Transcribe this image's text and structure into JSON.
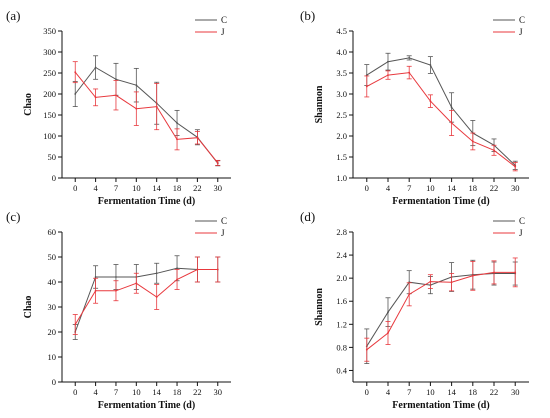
{
  "colors": {
    "C": "#555555",
    "J": "#e8383d",
    "axis": "#111111"
  },
  "chart_data": [
    {
      "panel": "(a)",
      "type": "line",
      "categories": [
        "0",
        "4",
        "7",
        "10",
        "14",
        "18",
        "22",
        "30"
      ],
      "xlabel": "Fermentation Time (d)",
      "ylabel": "Chao",
      "ylim": [
        0,
        350
      ],
      "yticks": [
        "0",
        "50",
        "100",
        "150",
        "200",
        "250",
        "300",
        "350"
      ],
      "legend_position": "top-right",
      "series": [
        {
          "name": "C",
          "values": [
            200,
            263,
            235,
            221,
            178,
            131,
            97,
            35
          ],
          "errors": [
            30,
            28,
            38,
            40,
            50,
            30,
            18,
            6
          ]
        },
        {
          "name": "J",
          "values": [
            252,
            192,
            197,
            165,
            170,
            92,
            96,
            36
          ],
          "errors": [
            25,
            20,
            35,
            40,
            55,
            25,
            15,
            6
          ]
        }
      ]
    },
    {
      "panel": "(b)",
      "type": "line",
      "categories": [
        "0",
        "4",
        "7",
        "10",
        "14",
        "18",
        "22",
        "30"
      ],
      "xlabel": "Fermentation Time (d)",
      "ylabel": "Shannon",
      "ylim": [
        1.0,
        4.5
      ],
      "yticks": [
        "1.0",
        "1.5",
        "2.0",
        "2.5",
        "3.0",
        "3.5",
        "4.0",
        "4.5"
      ],
      "legend_position": "top-right",
      "series": [
        {
          "name": "C",
          "values": [
            3.45,
            3.77,
            3.86,
            3.69,
            2.68,
            2.07,
            1.78,
            1.3
          ],
          "errors": [
            0.25,
            0.2,
            0.05,
            0.2,
            0.35,
            0.3,
            0.15,
            0.1
          ]
        },
        {
          "name": "J",
          "values": [
            3.18,
            3.45,
            3.51,
            2.83,
            2.31,
            1.87,
            1.66,
            1.27
          ],
          "errors": [
            0.25,
            0.1,
            0.15,
            0.15,
            0.3,
            0.2,
            0.12,
            0.1
          ]
        }
      ]
    },
    {
      "panel": "(c)",
      "type": "line",
      "categories": [
        "0",
        "4",
        "7",
        "10",
        "14",
        "18",
        "22",
        "30"
      ],
      "xlabel": "Fermentation Time (d)",
      "ylabel": "Chao",
      "ylim": [
        0,
        60
      ],
      "yticks": [
        "0",
        "10",
        "20",
        "30",
        "40",
        "50",
        "60"
      ],
      "legend_position": "top-right",
      "series": [
        {
          "name": "C",
          "values": [
            20,
            42,
            42,
            42,
            43.5,
            45.5,
            45,
            45
          ],
          "errors": [
            3,
            4.5,
            5,
            5,
            4,
            5,
            5,
            5
          ]
        },
        {
          "name": "J",
          "values": [
            23,
            36.5,
            36.5,
            39.5,
            34,
            41,
            45,
            45
          ],
          "errors": [
            4,
            5,
            4,
            4,
            5,
            4,
            5,
            5
          ]
        }
      ]
    },
    {
      "panel": "(d)",
      "type": "line",
      "categories": [
        "0",
        "4",
        "7",
        "10",
        "14",
        "18",
        "22",
        "30"
      ],
      "xlabel": "Fermentation Time (d)",
      "ylabel": "Shannon",
      "ylim": [
        0.2,
        2.8
      ],
      "yticks": [
        "0.4",
        "0.8",
        "1.2",
        "1.6",
        "2.0",
        "2.4",
        "2.8"
      ],
      "legend_position": "top-right",
      "series": [
        {
          "name": "C",
          "values": [
            0.82,
            1.41,
            1.93,
            1.88,
            2.02,
            2.06,
            2.08,
            2.08
          ],
          "errors": [
            0.3,
            0.25,
            0.2,
            0.15,
            0.25,
            0.25,
            0.2,
            0.2
          ]
        },
        {
          "name": "J",
          "values": [
            0.76,
            1.05,
            1.72,
            1.94,
            1.93,
            2.04,
            2.1,
            2.1
          ],
          "errors": [
            0.2,
            0.2,
            0.2,
            0.12,
            0.15,
            0.25,
            0.2,
            0.25
          ]
        }
      ]
    }
  ]
}
